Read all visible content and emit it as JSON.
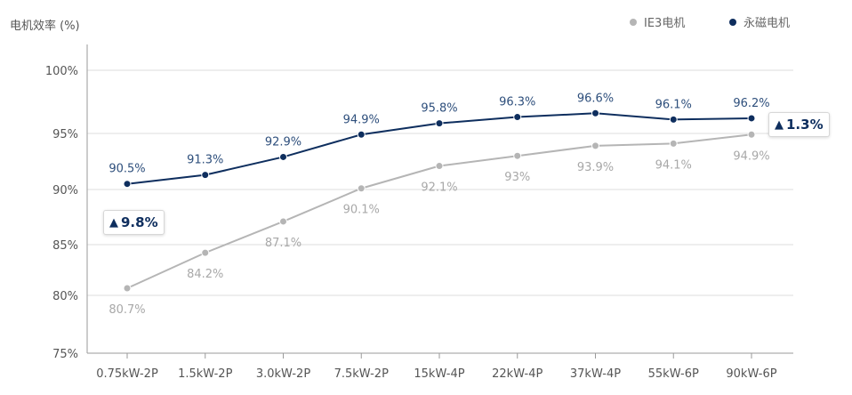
{
  "chart_data": {
    "type": "line",
    "ylabel": "电机效率 (%)",
    "categories": [
      "0.75kW-2P",
      "1.5kW-2P",
      "3.0kW-2P",
      "7.5kW-2P",
      "15kW-4P",
      "22kW-4P",
      "37kW-4P",
      "55kW-6P",
      "90kW-6P"
    ],
    "y_ticks": [
      {
        "value": 75,
        "label": "75%"
      },
      {
        "value": 80,
        "label": "80%"
      },
      {
        "value": 85,
        "label": "85%"
      },
      {
        "value": 90,
        "label": "90%"
      },
      {
        "value": 95,
        "label": "95%"
      },
      {
        "value": 100,
        "label": "100%"
      }
    ],
    "grid": true,
    "legend_position": "top-right",
    "series": [
      {
        "name": "IE3电机",
        "color": "#b5b5b5",
        "values": [
          80.7,
          84.2,
          87.1,
          90.1,
          92.1,
          93,
          93.9,
          94.1,
          94.9
        ],
        "labels": [
          "80.7%",
          "84.2%",
          "87.1%",
          "90.1%",
          "92.1%",
          "93%",
          "93.9%",
          "94.1%",
          "94.9%"
        ]
      },
      {
        "name": "永磁电机",
        "color": "#0e2e5e",
        "values": [
          90.5,
          91.3,
          92.9,
          94.9,
          95.8,
          96.3,
          96.6,
          96.1,
          96.2
        ],
        "labels": [
          "90.5%",
          "91.3%",
          "92.9%",
          "94.9%",
          "95.8%",
          "96.3%",
          "96.6%",
          "96.1%",
          "96.2%"
        ]
      }
    ],
    "annotations": [
      {
        "text": "9.8%",
        "icon": "up-arrow-icon"
      },
      {
        "text": "1.3%",
        "icon": "up-arrow-icon"
      }
    ]
  }
}
